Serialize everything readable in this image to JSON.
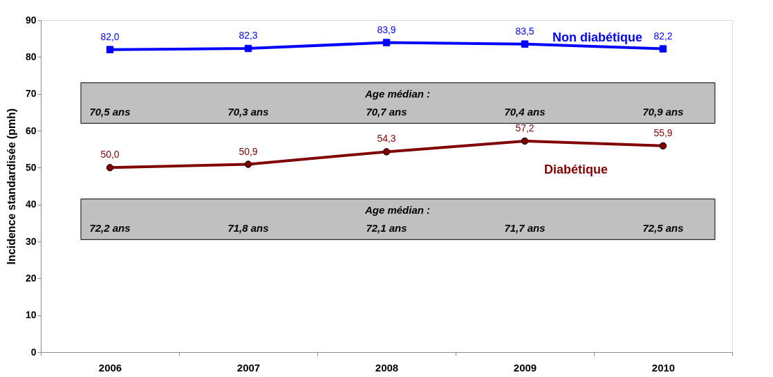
{
  "chart_data": {
    "type": "line",
    "ylabel": "Incidence standardisée (pmh)",
    "categories": [
      "2006",
      "2007",
      "2008",
      "2009",
      "2010"
    ],
    "series": [
      {
        "name": "Non diabétique",
        "color": "#0000ff",
        "marker": "square",
        "values": [
          82.0,
          82.3,
          83.9,
          83.5,
          82.2
        ],
        "value_labels": [
          "82,0",
          "82,3",
          "83,9",
          "83,5",
          "82,2"
        ]
      },
      {
        "name": "Diabétique",
        "color": "#800000",
        "marker": "circle",
        "values": [
          50.0,
          50.9,
          54.3,
          57.2,
          55.9
        ],
        "value_labels": [
          "50,0",
          "50,9",
          "54,3",
          "57,2",
          "55,9"
        ]
      }
    ],
    "ylim": [
      0,
      90
    ],
    "yticks": [
      0,
      10,
      20,
      30,
      40,
      50,
      60,
      70,
      80,
      90
    ],
    "grid": false,
    "legend": false,
    "line_style": "solid",
    "bands": [
      {
        "axis": "y",
        "from": 62,
        "to": 73,
        "color": "#c0c0c0"
      },
      {
        "axis": "y",
        "from": 30.5,
        "to": 41.5,
        "color": "#c0c0c0"
      }
    ],
    "annotations": [
      "Age médian :",
      "70,5 ans",
      "70,3 ans",
      "70,7 ans",
      "70,4 ans",
      "70,9 ans",
      "Age médian :",
      "72,2 ans",
      "71,8 ans",
      "72,1 ans",
      "71,7 ans",
      "72,5 ans"
    ]
  }
}
